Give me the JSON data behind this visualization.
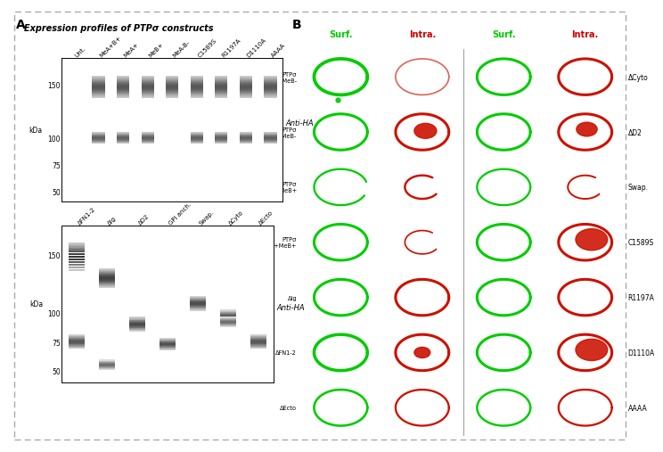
{
  "fig_width": 6.98,
  "fig_height": 4.88,
  "bg_color": "#ffffff",
  "panel_A_label": "A",
  "panel_B_label": "B",
  "title_text": "Expression profiles of PTPσ constructs",
  "wb1_lanes": [
    "Unt.",
    "MeA+B+",
    "MeA+",
    "MeB+",
    "MeA-B-",
    "C1589S",
    "R1197A",
    "D1110A",
    "AAAA"
  ],
  "wb1_label": "Anti-HA",
  "wb1_kda_vals": [
    150,
    100,
    75,
    50
  ],
  "wb2_lanes": [
    "ΔFN1-2",
    "ΔIg",
    "ΔD2",
    "GPI anch.",
    "Swap.",
    "ΔCyto",
    "ΔEcto"
  ],
  "wb2_label": "Anti-HA",
  "wb2_kda_vals": [
    150,
    100,
    75,
    50
  ],
  "B_col_labels": [
    "Surf.",
    "Intra.",
    "Surf.",
    "Intra."
  ],
  "B_col_label_colors": [
    "#00cc00",
    "#cc0000",
    "#00cc00",
    "#cc0000"
  ],
  "B_row_left_labels": [
    "PTPσ\nMeA-MeB-",
    "PTPσ\nMeA+MeB-",
    "PTPσ\nMeA-MeB+",
    "PTPσ\nMeA+MeB+",
    "ΔIg",
    "ΔFN1-2",
    "ΔEcto"
  ],
  "B_row_right_labels": [
    "ΔCyto",
    "ΔD2",
    "Swap.",
    "C1589S",
    "R1197A",
    "D1110A",
    "AAAA"
  ],
  "green_color": "#00dd00",
  "red_color": "#dd2200"
}
